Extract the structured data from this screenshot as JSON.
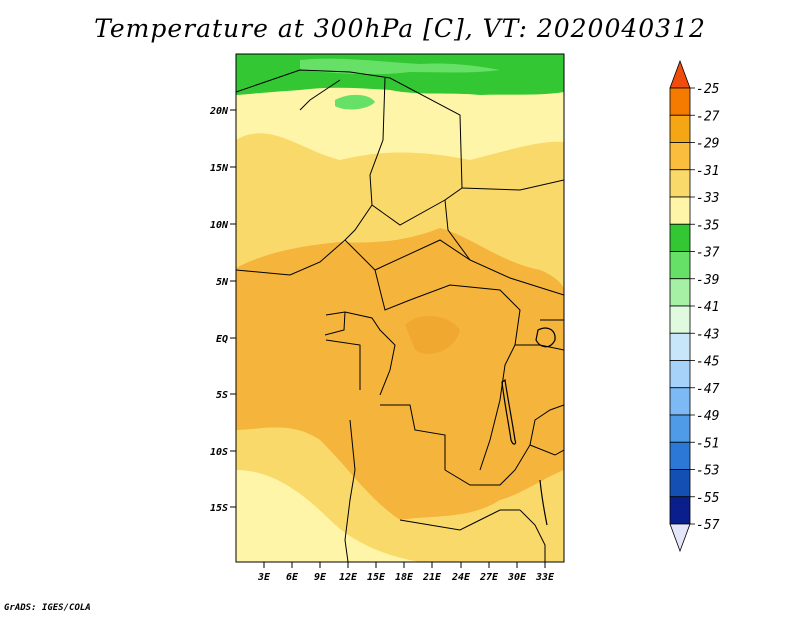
{
  "title": "Temperature at 300hPa [C], VT: 2020040312",
  "credit": "GrADS: IGES/COLA",
  "map": {
    "lat_ticks": [
      "20N",
      "15N",
      "10N",
      "5N",
      "EQ",
      "5S",
      "10S",
      "15S"
    ],
    "lon_ticks": [
      "3E",
      "6E",
      "9E",
      "12E",
      "15E",
      "18E",
      "21E",
      "24E",
      "27E",
      "30E",
      "33E"
    ]
  },
  "colorbar": {
    "levels": [
      "-25",
      "-27",
      "-29",
      "-31",
      "-33",
      "-35",
      "-37",
      "-39",
      "-41",
      "-43",
      "-45",
      "-47",
      "-49",
      "-51",
      "-53",
      "-55",
      "-57"
    ],
    "colors": [
      "#f04d0d",
      "#f57a00",
      "#f5a614",
      "#fabd3d",
      "#fad96b",
      "#fff5a8",
      "#33c733",
      "#66e066",
      "#a6f0a6",
      "#e0fae0",
      "#c8e6fa",
      "#a6d2fa",
      "#7db9f5",
      "#4f9be8",
      "#2c78d6",
      "#1450b4",
      "#0a1e8c",
      "#e6e6fa"
    ]
  }
}
